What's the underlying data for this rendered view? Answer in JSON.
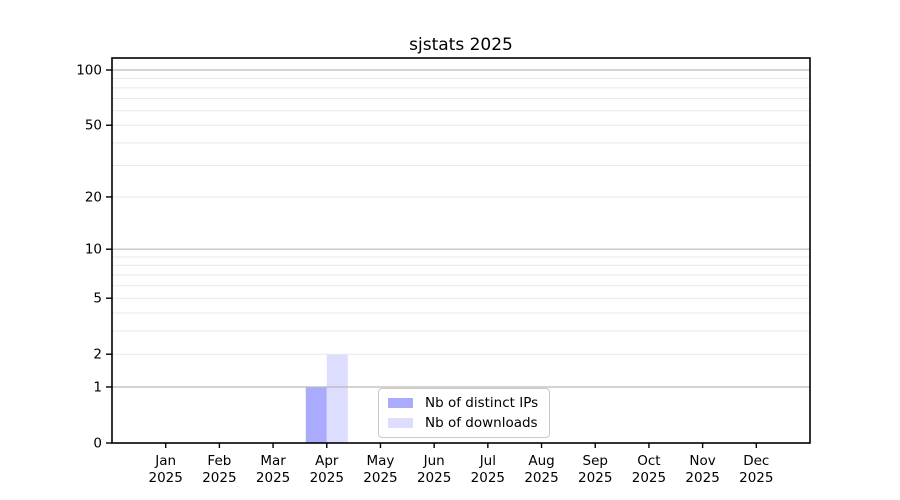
{
  "chart_data": {
    "type": "bar",
    "title": "sjstats 2025",
    "categories": [
      "Jan",
      "Feb",
      "Mar",
      "Apr",
      "May",
      "Jun",
      "Jul",
      "Aug",
      "Sep",
      "Oct",
      "Nov",
      "Dec"
    ],
    "category_year": "2025",
    "series": [
      {
        "name": "Nb of distinct IPs",
        "color": "#aaaaff",
        "values": [
          0,
          0,
          0,
          1,
          0,
          0,
          0,
          0,
          0,
          0,
          0,
          0
        ]
      },
      {
        "name": "Nb of downloads",
        "color": "#ddddff",
        "values": [
          0,
          0,
          0,
          2,
          0,
          0,
          0,
          0,
          0,
          0,
          0,
          0
        ]
      }
    ],
    "y_axis": {
      "scale": "log1p",
      "labeled_ticks": [
        0,
        1,
        2,
        5,
        10,
        20,
        50,
        100
      ],
      "decade_gridlines": [
        1,
        10,
        100
      ],
      "minor_gridlines": [
        2,
        3,
        4,
        5,
        6,
        7,
        8,
        9,
        20,
        30,
        40,
        50,
        60,
        70,
        80,
        90
      ],
      "ylim": [
        0,
        100
      ]
    },
    "grid": true,
    "legend_position": "inset lower center",
    "colors": {
      "grid_major": "#b9b9b9",
      "grid_minor": "#e9e9e9",
      "spine": "#000000",
      "text": "#000000",
      "background": "#ffffff"
    }
  }
}
